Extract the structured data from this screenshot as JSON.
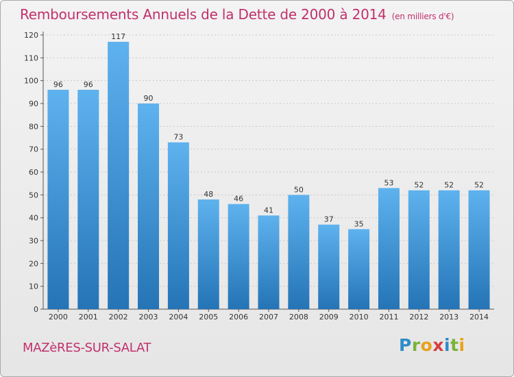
{
  "header": {
    "title": "Remboursements Annuels de la Dette de 2000 à 2014",
    "subtitle": "(en milliers d'€)"
  },
  "footer": {
    "commune": "MAZèRES-SUR-SALAT",
    "logo": [
      "P",
      "r",
      "o",
      "x",
      "i",
      "t",
      "i"
    ]
  },
  "colors": {
    "title": "#c0306a",
    "bar_top": "#5eb2ee",
    "bar_bottom": "#2474b6",
    "grid": "#c8c8c8"
  },
  "chart_data": {
    "type": "bar",
    "title": "Remboursements Annuels de la Dette de 2000 à 2014",
    "subtitle": "(en milliers d'€)",
    "categories": [
      "2000",
      "2001",
      "2002",
      "2003",
      "2004",
      "2005",
      "2006",
      "2007",
      "2008",
      "2009",
      "2010",
      "2011",
      "2012",
      "2013",
      "2014"
    ],
    "values": [
      96,
      96,
      117,
      90,
      73,
      48,
      46,
      41,
      50,
      37,
      35,
      53,
      52,
      52,
      52
    ],
    "ylim": [
      0,
      120
    ],
    "yticks": [
      0,
      10,
      20,
      30,
      40,
      50,
      60,
      70,
      80,
      90,
      100,
      110,
      120
    ],
    "grid": true,
    "xlabel": "",
    "ylabel": ""
  }
}
